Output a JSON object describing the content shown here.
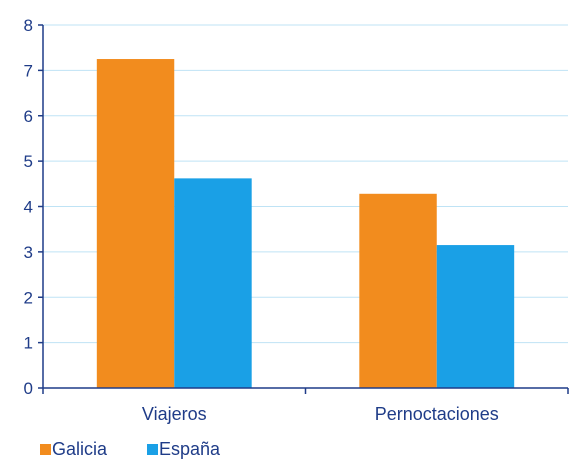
{
  "chart_data": {
    "type": "bar",
    "categories": [
      "Viajeros",
      "Pernoctaciones"
    ],
    "series": [
      {
        "name": "Galicia",
        "values": [
          7.25,
          4.28
        ],
        "color": "#f28c1e"
      },
      {
        "name": "España",
        "values": [
          4.62,
          3.15
        ],
        "color": "#1aa0e6"
      }
    ],
    "ylim": [
      0,
      8
    ],
    "yticks": [
      0,
      1,
      2,
      3,
      4,
      5,
      6,
      7,
      8
    ],
    "grid": true,
    "legend": "bottom-left",
    "axis_color": "#1f3c88",
    "grid_color": "#bfe3f5"
  }
}
